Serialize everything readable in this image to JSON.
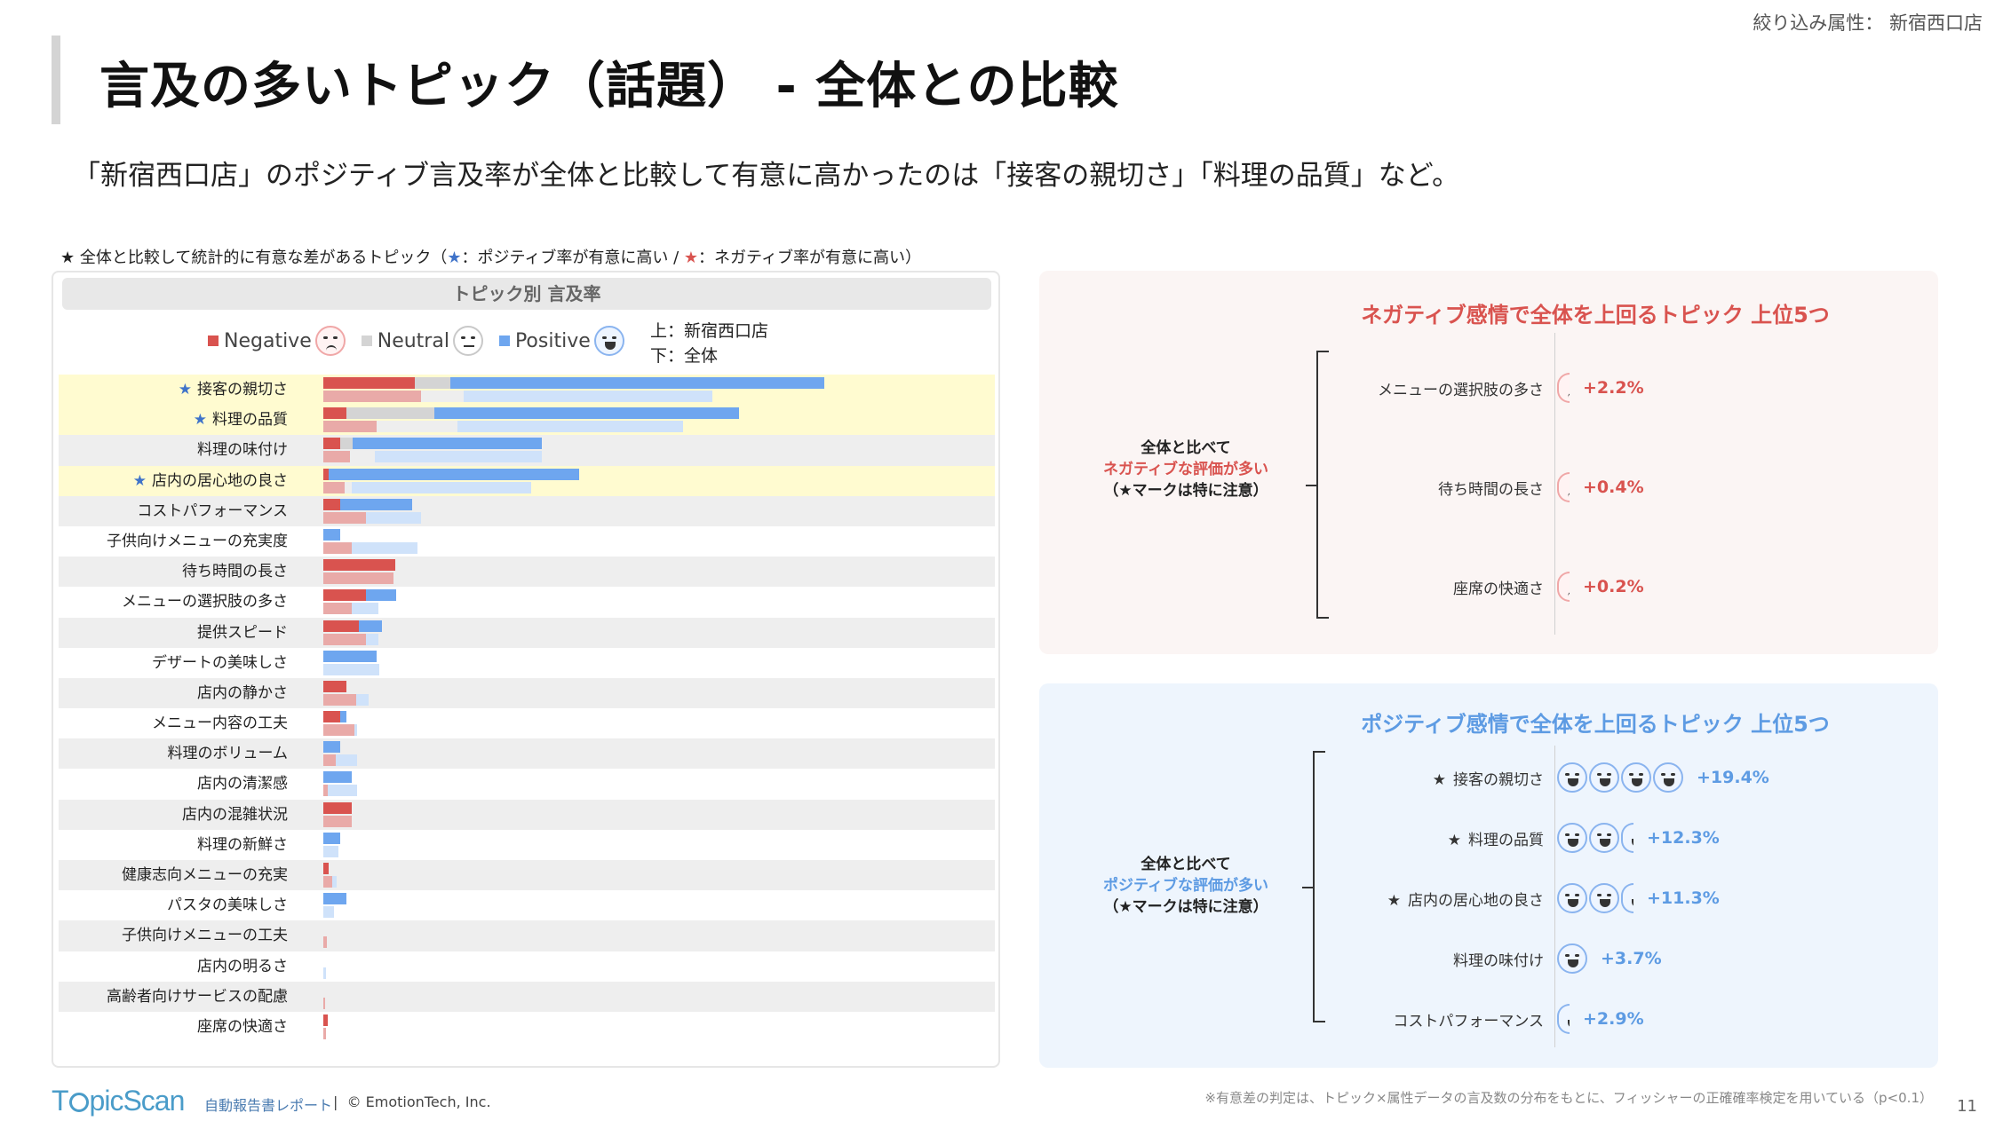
{
  "header": {
    "filter_label": "絞り込み属性：",
    "filter_value": "新宿西口店",
    "title": "言及の多いトピック（話題） - 全体との比較",
    "subtitle": "「新宿西口店」のポジティブ言及率が全体と比較して有意に高かったのは「接客の親切さ」「料理の品質」など。"
  },
  "star_note": {
    "prefix": "★ 全体と比較して統計的に有意な差があるトピック（",
    "blue_star": "★",
    "blue_text": "：ポジティブ率が有意に高い / ",
    "red_star": "★",
    "red_text": "：ネガティブ率が有意に高い）"
  },
  "chart_data": {
    "type": "bar",
    "title": "トピック別 言及率",
    "orientation": "horizontal-stacked",
    "legend": [
      "Negative",
      "Neutral",
      "Positive"
    ],
    "legend_note_top": "上：新宿西口店",
    "legend_note_bottom": "下：全体",
    "colors": {
      "negative": "#d9534f",
      "negative_light": "#e9aaa8",
      "neutral": "#d4d4d4",
      "neutral_light": "#eeeeee",
      "positive": "#6ea6ef",
      "positive_light": "#cfe2fa"
    },
    "categories": [
      {
        "label": "接客の親切さ",
        "star": true,
        "highlight": true,
        "store": [
          9.5,
          3.7,
          39.0
        ],
        "all": [
          10.2,
          4.4,
          26.0
        ]
      },
      {
        "label": "料理の品質",
        "star": true,
        "highlight": true,
        "store": [
          2.4,
          9.2,
          31.7
        ],
        "all": [
          5.6,
          8.4,
          23.5
        ]
      },
      {
        "label": "料理の味付け",
        "star": false,
        "highlight": false,
        "store": [
          1.8,
          1.3,
          19.7
        ],
        "all": [
          2.8,
          2.6,
          17.4
        ]
      },
      {
        "label": "店内の居心地の良さ",
        "star": true,
        "highlight": true,
        "store": [
          0.6,
          0.0,
          26.1
        ],
        "all": [
          2.2,
          0.8,
          18.7
        ]
      },
      {
        "label": "コストパフォーマンス",
        "star": false,
        "highlight": false,
        "store": [
          1.8,
          0.0,
          7.5
        ],
        "all": [
          4.4,
          0.0,
          5.8
        ]
      },
      {
        "label": "子供向けメニューの充実度",
        "star": false,
        "highlight": false,
        "store": [
          0.0,
          0.0,
          1.8
        ],
        "all": [
          3.0,
          0.0,
          6.8
        ]
      },
      {
        "label": "待ち時間の長さ",
        "star": false,
        "highlight": false,
        "store": [
          7.5,
          0.0,
          0.0
        ],
        "all": [
          7.3,
          0.0,
          0.0
        ]
      },
      {
        "label": "メニューの選択肢の多さ",
        "star": false,
        "highlight": false,
        "store": [
          4.4,
          0.0,
          3.2
        ],
        "all": [
          3.0,
          0.0,
          2.7
        ]
      },
      {
        "label": "提供スピード",
        "star": false,
        "highlight": false,
        "store": [
          3.7,
          0.0,
          2.4
        ],
        "all": [
          4.4,
          0.0,
          1.3
        ]
      },
      {
        "label": "デザートの美味しさ",
        "star": false,
        "highlight": false,
        "store": [
          0.0,
          0.0,
          5.6
        ],
        "all": [
          0.0,
          0.0,
          5.8
        ]
      },
      {
        "label": "店内の静かさ",
        "star": false,
        "highlight": false,
        "store": [
          2.4,
          0.0,
          0.0
        ],
        "all": [
          3.4,
          0.0,
          1.3
        ]
      },
      {
        "label": "メニュー内容の工夫",
        "star": false,
        "highlight": false,
        "store": [
          1.8,
          0.0,
          0.6
        ],
        "all": [
          3.2,
          0.0,
          0.3
        ]
      },
      {
        "label": "料理のボリューム",
        "star": false,
        "highlight": false,
        "store": [
          0.0,
          0.0,
          1.8
        ],
        "all": [
          1.3,
          0.0,
          2.2
        ]
      },
      {
        "label": "店内の清潔感",
        "star": false,
        "highlight": false,
        "store": [
          0.0,
          0.0,
          3.0
        ],
        "all": [
          0.5,
          0.0,
          3.0
        ]
      },
      {
        "label": "店内の混雑状況",
        "star": false,
        "highlight": false,
        "store": [
          3.0,
          0.0,
          0.0
        ],
        "all": [
          3.0,
          0.0,
          0.0
        ]
      },
      {
        "label": "料理の新鮮さ",
        "star": false,
        "highlight": false,
        "store": [
          0.0,
          0.0,
          1.8
        ],
        "all": [
          0.0,
          0.0,
          1.6
        ]
      },
      {
        "label": "健康志向メニューの充実",
        "star": false,
        "highlight": false,
        "store": [
          0.6,
          0.0,
          0.0
        ],
        "all": [
          0.9,
          0.0,
          0.5
        ]
      },
      {
        "label": "パスタの美味しさ",
        "star": false,
        "highlight": false,
        "store": [
          0.0,
          0.0,
          2.4
        ],
        "all": [
          0.0,
          0.0,
          1.1
        ]
      },
      {
        "label": "子供向けメニューの工夫",
        "star": false,
        "highlight": false,
        "store": [
          0.0,
          0.0,
          0.0
        ],
        "all": [
          0.4,
          0.0,
          0.0
        ]
      },
      {
        "label": "店内の明るさ",
        "star": false,
        "highlight": false,
        "store": [
          0.0,
          0.0,
          0.0
        ],
        "all": [
          0.0,
          0.0,
          0.3
        ]
      },
      {
        "label": "高齢者向けサービスの配慮",
        "star": false,
        "highlight": false,
        "store": [
          0.0,
          0.0,
          0.0
        ],
        "all": [
          0.2,
          0.0,
          0.0
        ]
      },
      {
        "label": "座席の快適さ",
        "star": false,
        "highlight": false,
        "store": [
          0.5,
          0.0,
          0.0
        ],
        "all": [
          0.3,
          0.0,
          0.0
        ]
      }
    ],
    "xlim": [
      0,
      70
    ]
  },
  "negative_card": {
    "title": "ネガティブ感情で全体を上回るトピック 上位5つ",
    "side_line1": "全体と比べて",
    "side_line2": "ネガティブな評価が多い",
    "side_line3": "（★マークは特に注意）",
    "topics": [
      {
        "name": "メニューの選択肢の多さ",
        "diff": "+2.2%",
        "faces": 0.35
      },
      {
        "name": "待ち時間の長さ",
        "diff": "+0.4%",
        "faces": 0.1
      },
      {
        "name": "座席の快適さ",
        "diff": "+0.2%",
        "faces": 0.05
      }
    ]
  },
  "positive_card": {
    "title": "ポジティブ感情で全体を上回るトピック 上位5つ",
    "side_line1": "全体と比べて",
    "side_line2": "ポジティブな評価が多い",
    "side_line3": "（★マークは特に注意）",
    "topics": [
      {
        "name": "接客の親切さ",
        "star": "★",
        "diff": "+19.4%",
        "faces": 4
      },
      {
        "name": "料理の品質",
        "star": "★",
        "diff": "+12.3%",
        "faces": 2.5
      },
      {
        "name": "店内の居心地の良さ",
        "star": "★",
        "diff": "+11.3%",
        "faces": 2.3
      },
      {
        "name": "料理の味付け",
        "star": "",
        "diff": "+3.7%",
        "faces": 1
      },
      {
        "name": "コストパフォーマンス",
        "star": "",
        "diff": "+2.9%",
        "faces": 0.5
      }
    ]
  },
  "footer": {
    "logo_pre": "T",
    "logo_post": "picScan",
    "report": "自動報告書レポート",
    "sep": "|",
    "copyright": "© EmotionTech, Inc.",
    "note": "※有意差の判定は、トピック×属性データの言及数の分布をもとに、フィッシャーの正確確率検定を用いている（p<0.1）",
    "page": "11"
  }
}
